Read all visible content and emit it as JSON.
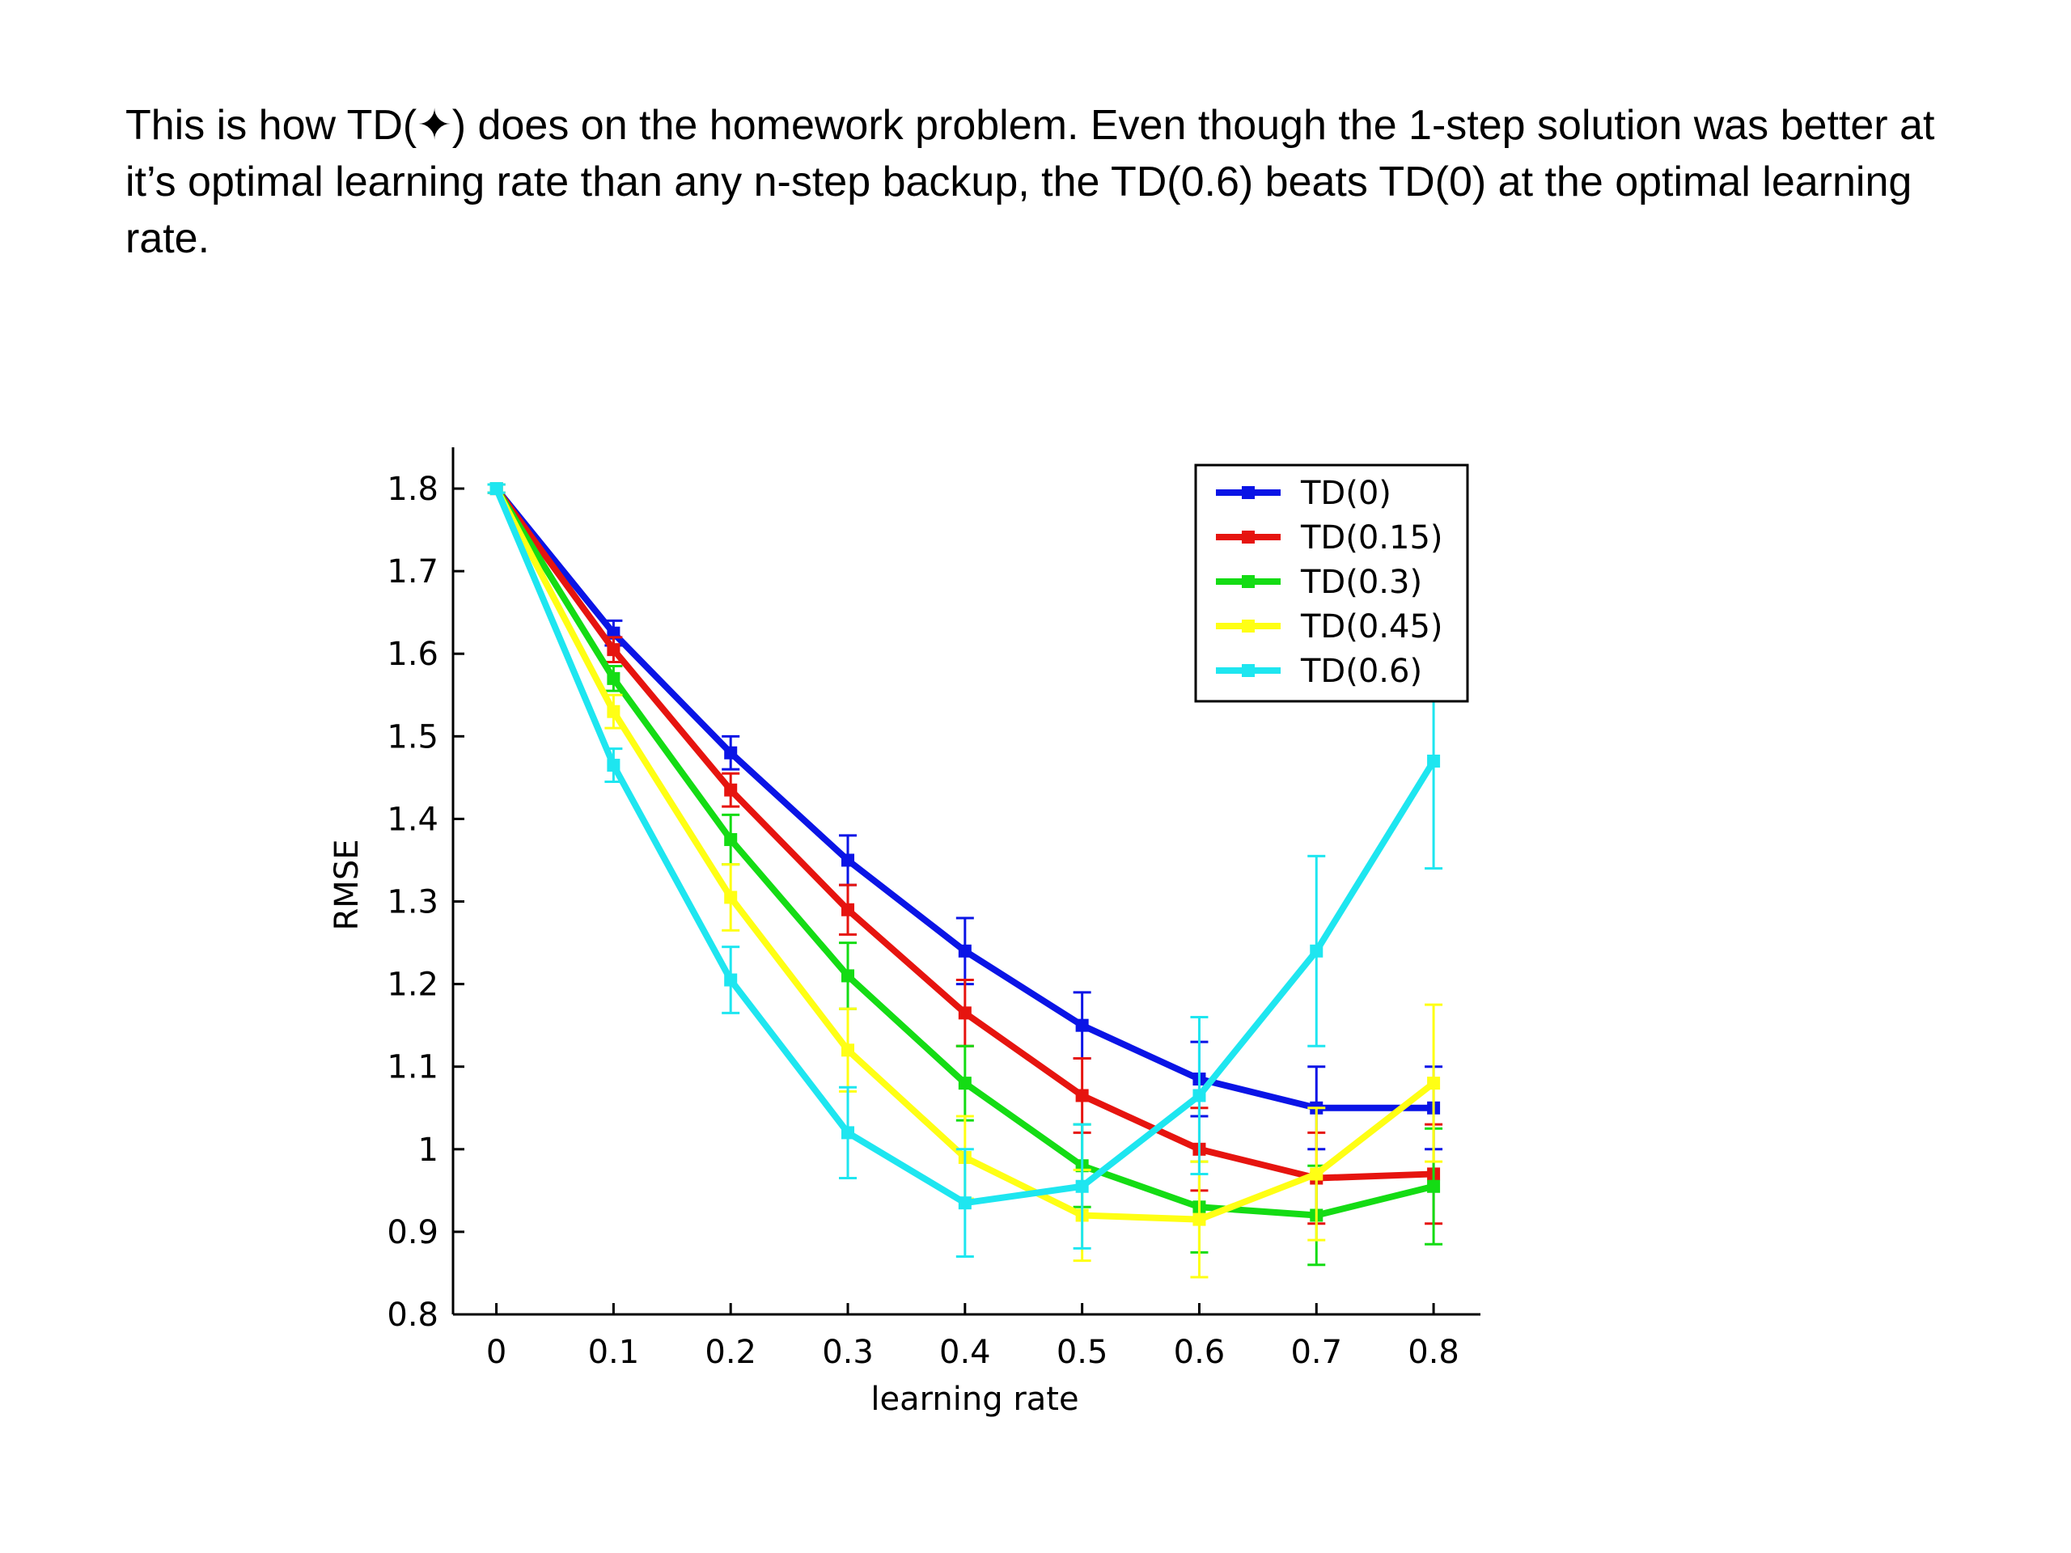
{
  "caption": {
    "before_symbol": "This is how TD(",
    "symbol": "✦",
    "after_symbol": ") does on the homework problem. Even though the 1-step solution was better at it’s optimal learning rate than any n-step backup, the TD(0.6) beats TD(0) at the optimal learning rate."
  },
  "chart_data": {
    "type": "line",
    "title": "",
    "xlabel": "learning rate",
    "ylabel": "RMSE",
    "xlim": [
      -0.037,
      0.84
    ],
    "ylim": [
      0.8,
      1.85
    ],
    "xticks": [
      "0",
      "0.1",
      "0.2",
      "0.3",
      "0.4",
      "0.5",
      "0.6",
      "0.7",
      "0.8"
    ],
    "xtick_values": [
      0,
      0.1,
      0.2,
      0.3,
      0.4,
      0.5,
      0.6,
      0.7,
      0.8
    ],
    "yticks": [
      "0.8",
      "0.9",
      "1",
      "1.1",
      "1.2",
      "1.3",
      "1.4",
      "1.5",
      "1.6",
      "1.7",
      "1.8"
    ],
    "ytick_values": [
      0.8,
      0.9,
      1.0,
      1.1,
      1.2,
      1.3,
      1.4,
      1.5,
      1.6,
      1.7,
      1.8
    ],
    "grid": false,
    "legend_position": "top-right",
    "x": [
      0,
      0.1,
      0.2,
      0.3,
      0.4,
      0.5,
      0.6,
      0.7,
      0.8
    ],
    "series": [
      {
        "name": "TD(0)",
        "color": "#0a14e6",
        "values": [
          1.8,
          1.625,
          1.48,
          1.35,
          1.24,
          1.15,
          1.085,
          1.05,
          1.05
        ],
        "errors": [
          0.005,
          0.015,
          0.02,
          0.03,
          0.04,
          0.04,
          0.045,
          0.05,
          0.05
        ]
      },
      {
        "name": "TD(0.15)",
        "color": "#e6140f",
        "values": [
          1.8,
          1.605,
          1.435,
          1.29,
          1.165,
          1.065,
          1.0,
          0.965,
          0.97
        ],
        "errors": [
          0.005,
          0.015,
          0.02,
          0.03,
          0.04,
          0.045,
          0.05,
          0.055,
          0.06
        ]
      },
      {
        "name": "TD(0.3)",
        "color": "#14dc14",
        "values": [
          1.8,
          1.57,
          1.375,
          1.21,
          1.08,
          0.98,
          0.93,
          0.92,
          0.955
        ],
        "errors": [
          0.005,
          0.015,
          0.03,
          0.04,
          0.045,
          0.05,
          0.055,
          0.06,
          0.07
        ]
      },
      {
        "name": "TD(0.45)",
        "color": "#ffff14",
        "values": [
          1.8,
          1.53,
          1.305,
          1.12,
          0.99,
          0.92,
          0.915,
          0.97,
          1.08
        ],
        "errors": [
          0.005,
          0.02,
          0.04,
          0.05,
          0.05,
          0.055,
          0.07,
          0.08,
          0.095
        ]
      },
      {
        "name": "TD(0.6)",
        "color": "#1ee6f0",
        "values": [
          1.8,
          1.465,
          1.205,
          1.02,
          0.935,
          0.955,
          1.065,
          1.24,
          1.47
        ],
        "errors": [
          0.005,
          0.02,
          0.04,
          0.055,
          0.065,
          0.075,
          0.095,
          0.115,
          0.13
        ]
      }
    ]
  }
}
